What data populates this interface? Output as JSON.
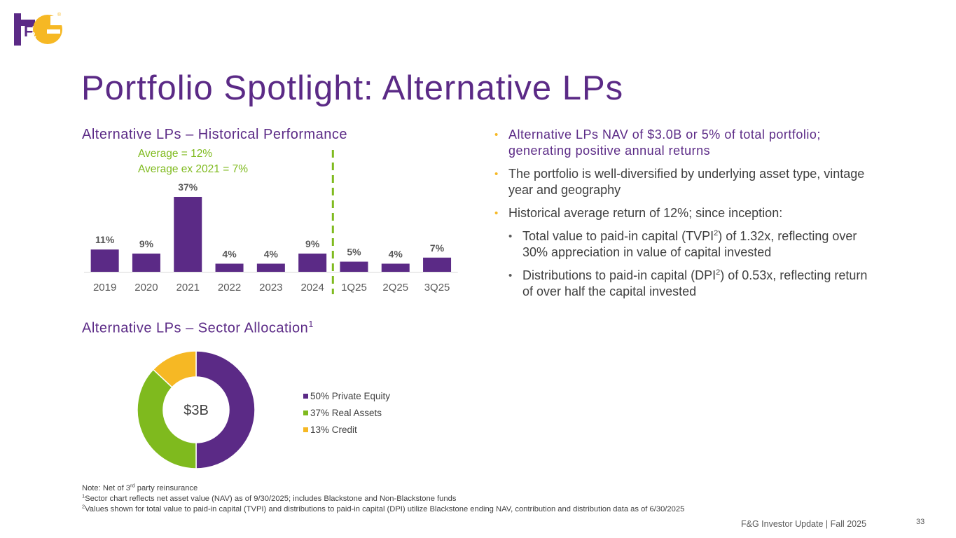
{
  "logo": {
    "text_main": "F",
    "text_amp": "&",
    "text_g": "G",
    "registered": "®"
  },
  "title": "Portfolio Spotlight:  Alternative LPs",
  "hist_title": "Alternative LPs – Historical Performance",
  "average": {
    "line1": "Average = 12%",
    "line2": "Average ex 2021 = 7%"
  },
  "colors": {
    "purple": "#5b2a86",
    "green": "#7fba1e",
    "yellow": "#f6b824"
  },
  "chart_data": [
    {
      "type": "bar",
      "title": "Alternative LPs – Historical Performance",
      "categories": [
        "2019",
        "2020",
        "2021",
        "2022",
        "2023",
        "2024",
        "1Q25",
        "2Q25",
        "3Q25"
      ],
      "values": [
        11,
        9,
        37,
        4,
        4,
        9,
        5,
        4,
        7
      ],
      "value_labels": [
        "11%",
        "9%",
        "37%",
        "4%",
        "4%",
        "9%",
        "5%",
        "4%",
        "7%"
      ],
      "xlabel": "",
      "ylabel": "",
      "ylim": [
        0,
        37
      ],
      "grid": false,
      "divider_after_category": "2024",
      "annotations": [
        "Average = 12%",
        "Average ex 2021 = 7%"
      ]
    },
    {
      "type": "pie",
      "style": "donut",
      "title": "Alternative LPs – Sector Allocation",
      "center_label": "$3B",
      "labels": [
        "Private Equity",
        "Real Assets",
        "Credit"
      ],
      "values": [
        50,
        37,
        13
      ],
      "legend": [
        "50% Private Equity",
        "37% Real Assets",
        "13% Credit"
      ],
      "colors": [
        "#5b2a86",
        "#7fba1e",
        "#f6b824"
      ],
      "legend_position": "right"
    }
  ],
  "sector_title": "Alternative LPs – Sector Allocation",
  "sector_title_sup": "1",
  "bullets": {
    "b1": "Alternative LPs NAV of $3.0B or 5% of total portfolio; generating positive annual returns",
    "b2": "The portfolio is well-diversified by underlying asset type, vintage year and geography",
    "b3": "Historical average return of 12%; since inception:",
    "b4_pre": "Total value to paid-in capital (TVPI",
    "b4_sup": "2",
    "b4_post": ") of 1.32x, reflecting over 30% appreciation in value of capital invested",
    "b5_pre": "Distributions to paid-in capital (DPI",
    "b5_sup": "2",
    "b5_post": ") of 0.53x, reflecting return of over half the capital invested"
  },
  "notes": {
    "n1_pre": "Note: Net of 3",
    "n1_sup": "rd",
    "n1_post": " party reinsurance",
    "n2_sup": "1",
    "n2": "Sector chart reflects net asset value (NAV) as of 9/30/2025; includes Blackstone and Non-Blackstone funds",
    "n3_sup": "2",
    "n3": "Values shown for total value to paid-in capital (TVPI) and distributions to paid-in capital (DPI) utilize Blackstone ending NAV, contribution and distribution data as of 6/30/2025"
  },
  "footer": "F&G Investor Update |  Fall 2025",
  "page_number": "33"
}
